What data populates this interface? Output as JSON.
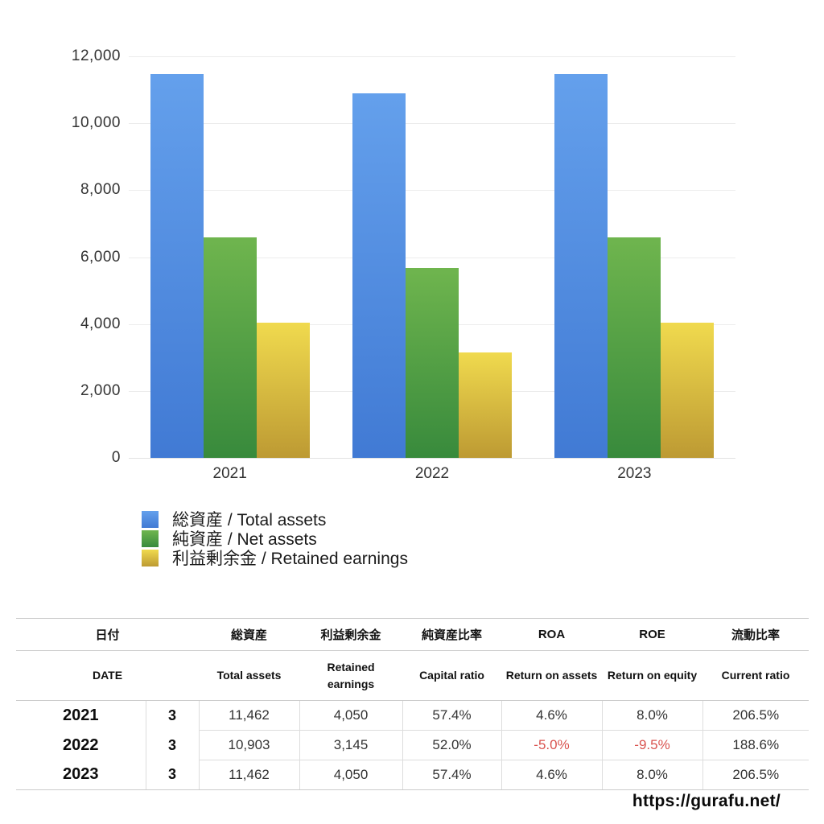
{
  "chart_data": {
    "type": "bar",
    "categories": [
      "2021",
      "2022",
      "2023"
    ],
    "series": [
      {
        "key": "total-assets",
        "name": "総資産 / Total assets",
        "values": [
          11462,
          10903,
          11462
        ],
        "color_top": "#64a0ec",
        "color_bottom": "#417ad4"
      },
      {
        "key": "net-assets",
        "name": "純資産 / Net assets",
        "values": [
          6579,
          5670,
          6579
        ],
        "color_top": "#6fb54e",
        "color_bottom": "#388a3c"
      },
      {
        "key": "retained-earnings",
        "name": "利益剰余金 / Retained earnings",
        "values": [
          4050,
          3145,
          4050
        ],
        "color_top": "#f0da4e",
        "color_bottom": "#bd9a33"
      }
    ],
    "ylim": [
      0,
      12000
    ],
    "ytick_step": 2000,
    "ytick_labels": [
      "0",
      "2,000",
      "4,000",
      "6,000",
      "8,000",
      "10,000",
      "12,000"
    ],
    "grid": true,
    "legend_position": "bottom-left"
  },
  "table": {
    "column_keys": [
      "year",
      "month",
      "total-assets",
      "retained-earnings",
      "capital-ratio",
      "roa",
      "roe",
      "current-ratio"
    ],
    "header_jp": [
      "日付",
      "総資産",
      "利益剰余金",
      "純資産比率",
      "ROA",
      "ROE",
      "流動比率"
    ],
    "header_en": [
      "DATE",
      "Total assets",
      "Retained earnings",
      "Capital ratio",
      "Return on assets",
      "Return on equity",
      "Current ratio"
    ],
    "rows": [
      {
        "cells": [
          "2021",
          "3",
          "11,462",
          "4,050",
          "57.4%",
          "4.6%",
          "8.0%",
          "206.5%"
        ],
        "red": []
      },
      {
        "cells": [
          "2022",
          "3",
          "10,903",
          "3,145",
          "52.0%",
          "-5.0%",
          "-9.5%",
          "188.6%"
        ],
        "red": [
          5,
          6
        ]
      },
      {
        "cells": [
          "2023",
          "3",
          "11,462",
          "4,050",
          "57.4%",
          "4.6%",
          "8.0%",
          "206.5%"
        ],
        "red": []
      }
    ]
  },
  "footer": {
    "url": "https://gurafu.net/"
  },
  "colors": {
    "negative": "#d9534f"
  }
}
